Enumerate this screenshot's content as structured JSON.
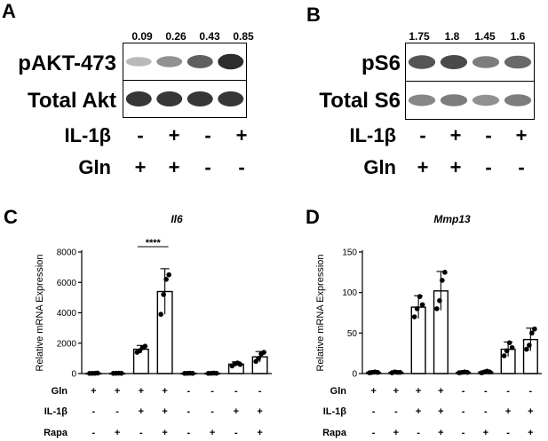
{
  "panel_letters": [
    "A",
    "B",
    "C",
    "D"
  ],
  "blot_A": {
    "quant_values": [
      "0.09",
      "0.26",
      "0.43",
      "0.85"
    ],
    "rows": [
      "pAKT-473",
      "Total Akt"
    ],
    "band_intensity": {
      "pAKT-473": [
        0.25,
        0.45,
        0.7,
        0.95
      ],
      "Total Akt": [
        0.9,
        0.9,
        0.9,
        0.9
      ]
    },
    "conditions": [
      {
        "label": "IL-1β",
        "signs": [
          "-",
          "+",
          "-",
          "+"
        ]
      },
      {
        "label": "Gln",
        "signs": [
          "+",
          "+",
          "-",
          "-"
        ]
      }
    ]
  },
  "blot_B": {
    "quant_values": [
      "1.75",
      "1.8",
      "1.45",
      "1.6"
    ],
    "rows": [
      "pS6",
      "Total S6"
    ],
    "band_intensity": {
      "pS6": [
        0.75,
        0.8,
        0.55,
        0.65
      ],
      "Total S6": [
        0.5,
        0.55,
        0.45,
        0.55
      ]
    },
    "conditions": [
      {
        "label": "IL-1β",
        "signs": [
          "-",
          "+",
          "-",
          "+"
        ]
      },
      {
        "label": "Gln",
        "signs": [
          "+",
          "+",
          "-",
          "-"
        ]
      }
    ]
  },
  "chart_data": [
    {
      "type": "bar",
      "panel": "C",
      "title": "Il6",
      "ylabel": "Relative mRNA Expression",
      "ylim": [
        0,
        8000
      ],
      "yticks": [
        "0",
        "2000",
        "4000",
        "6000",
        "8000"
      ],
      "values": [
        20,
        20,
        1600,
        5400,
        20,
        20,
        620,
        1100
      ],
      "errors": [
        10,
        10,
        250,
        1500,
        10,
        10,
        150,
        350
      ],
      "points": [
        [
          10,
          15,
          20,
          30
        ],
        [
          15,
          20,
          25,
          20
        ],
        [
          1400,
          1500,
          1700,
          1800
        ],
        [
          3900,
          5200,
          6200,
          6500
        ],
        [
          10,
          20,
          25,
          15
        ],
        [
          15,
          20,
          30,
          20
        ],
        [
          500,
          650,
          700,
          600
        ],
        [
          800,
          1000,
          1300,
          1400
        ]
      ],
      "significance": "****",
      "row_labels": [
        "Gln",
        "IL-1β",
        "Rapa"
      ],
      "row_signs": [
        [
          "+",
          "+",
          "+",
          "+",
          "-",
          "-",
          "-",
          "-"
        ],
        [
          "-",
          "-",
          "+",
          "+",
          "-",
          "-",
          "+",
          "+"
        ],
        [
          "-",
          "+",
          "-",
          "+",
          "-",
          "+",
          "-",
          "+"
        ]
      ]
    },
    {
      "type": "bar",
      "panel": "D",
      "title": "Mmp13",
      "ylabel": "Relative mRNA Expression",
      "ylim": [
        0,
        150
      ],
      "yticks": [
        "0",
        "50",
        "100",
        "150"
      ],
      "values": [
        1.5,
        1.5,
        82,
        102,
        1.5,
        2,
        30,
        42
      ],
      "errors": [
        0.5,
        0.5,
        14,
        24,
        0.5,
        1,
        9,
        14
      ],
      "points": [
        [
          1,
          1.5,
          2,
          1.5
        ],
        [
          1,
          2,
          1.5,
          1.5
        ],
        [
          70,
          80,
          95,
          85
        ],
        [
          80,
          90,
          115,
          125
        ],
        [
          1,
          1.5,
          2,
          1.5
        ],
        [
          1,
          2,
          3,
          2
        ],
        [
          22,
          28,
          38,
          32
        ],
        [
          30,
          35,
          50,
          55
        ]
      ],
      "row_labels": [
        "Gln",
        "IL-1β",
        "Rapa"
      ],
      "row_signs": [
        [
          "+",
          "+",
          "+",
          "+",
          "-",
          "-",
          "-",
          "-"
        ],
        [
          "-",
          "-",
          "+",
          "+",
          "-",
          "-",
          "+",
          "+"
        ],
        [
          "-",
          "+",
          "-",
          "+",
          "-",
          "+",
          "-",
          "+"
        ]
      ]
    }
  ]
}
